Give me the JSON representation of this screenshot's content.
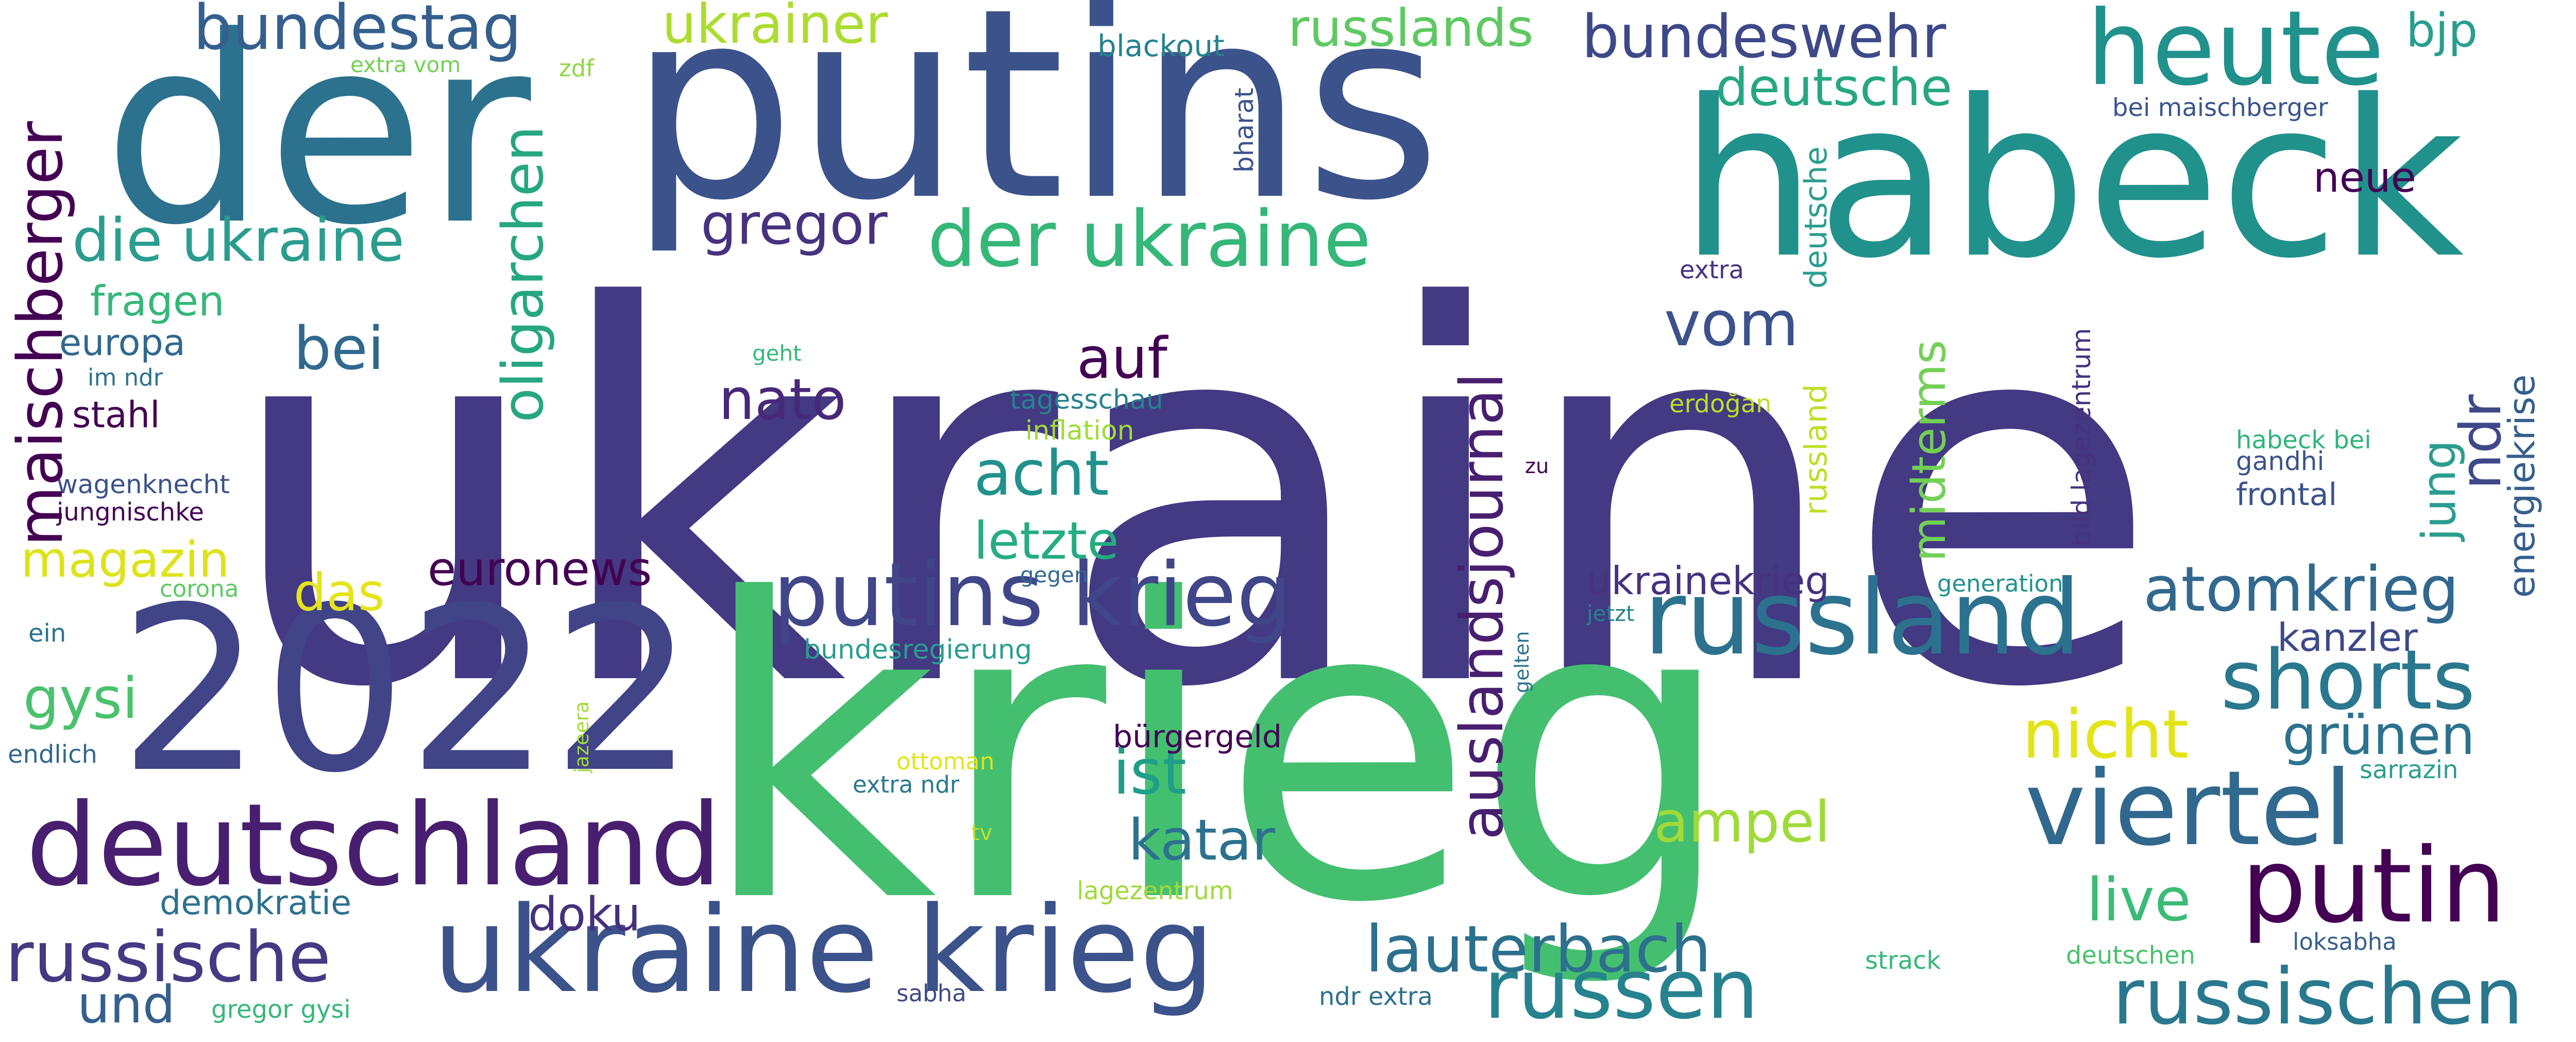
{
  "words": [
    {
      "text": "ukraine",
      "color": "#443983",
      "rot": 0
    },
    {
      "text": "krieg",
      "color": "#44bf70",
      "rot": 0
    },
    {
      "text": "putins",
      "color": "#3b528b",
      "rot": 0
    },
    {
      "text": "der",
      "color": "#2c728e",
      "rot": 0
    },
    {
      "text": "habeck",
      "color": "#21918c",
      "rot": 0
    },
    {
      "text": "2022",
      "color": "#414487",
      "rot": 0
    },
    {
      "text": "deutschland",
      "color": "#481f70",
      "rot": 0
    },
    {
      "text": "ukraine krieg",
      "color": "#3b528b",
      "rot": 0
    },
    {
      "text": "heute",
      "color": "#21918c",
      "rot": 0
    },
    {
      "text": "russland",
      "color": "#2c728e",
      "rot": 0
    },
    {
      "text": "putin",
      "color": "#440154",
      "rot": 0
    },
    {
      "text": "viertel",
      "color": "#31688e",
      "rot": 0
    },
    {
      "text": "putins krieg",
      "color": "#404688",
      "rot": 0
    },
    {
      "text": "der ukraine",
      "color": "#35b779",
      "rot": 0
    },
    {
      "text": "shorts",
      "color": "#2a788e",
      "rot": 0
    },
    {
      "text": "russen",
      "color": "#26828e",
      "rot": 0
    },
    {
      "text": "russischen",
      "color": "#2a788e",
      "rot": 0
    },
    {
      "text": "bundeswehr",
      "color": "#3e4989",
      "rot": 0
    },
    {
      "text": "bundestag",
      "color": "#355f8d",
      "rot": 0
    },
    {
      "text": "russische",
      "color": "#443a83",
      "rot": 0
    },
    {
      "text": "atomkrieg",
      "color": "#31688e",
      "rot": 0
    },
    {
      "text": "lauterbach",
      "color": "#2d708e",
      "rot": 0
    },
    {
      "text": "die ukraine",
      "color": "#2a9d8f",
      "rot": 0
    },
    {
      "text": "acht",
      "color": "#21918c",
      "rot": 0
    },
    {
      "text": "nicht",
      "color": "#e3e418",
      "rot": 0
    },
    {
      "text": "ukrainer",
      "color": "#addc30",
      "rot": 0
    },
    {
      "text": "russlands",
      "color": "#5ec962",
      "rot": 0
    },
    {
      "text": "deutsche",
      "color": "#26a782",
      "rot": 0
    },
    {
      "text": "gregor",
      "color": "#46327e",
      "rot": 0
    },
    {
      "text": "vom",
      "color": "#3b528b",
      "rot": 0
    },
    {
      "text": "nato",
      "color": "#482878",
      "rot": 0
    },
    {
      "text": "auf",
      "color": "#440154",
      "rot": 0
    },
    {
      "text": "ist",
      "color": "#1f9e89",
      "rot": 0
    },
    {
      "text": "katar",
      "color": "#2c728e",
      "rot": 0
    },
    {
      "text": "ampel",
      "color": "#a0da39",
      "rot": 0
    },
    {
      "text": "grünen",
      "color": "#2c728e",
      "rot": 0
    },
    {
      "text": "live",
      "color": "#3bbb75",
      "rot": 0
    },
    {
      "text": "letzte",
      "color": "#25ac82",
      "rot": 0
    },
    {
      "text": "bei",
      "color": "#31688e",
      "rot": 0
    },
    {
      "text": "magazin",
      "color": "#dde318",
      "rot": 0
    },
    {
      "text": "das",
      "color": "#e5e419",
      "rot": 0
    },
    {
      "text": "euronews",
      "color": "#440154",
      "rot": 0
    },
    {
      "text": "doku",
      "color": "#46307e",
      "rot": 0
    },
    {
      "text": "und",
      "color": "#355f8d",
      "rot": 0
    },
    {
      "text": "gysi",
      "color": "#4ac16d",
      "rot": 0
    },
    {
      "text": "bjp",
      "color": "#2a9d8f",
      "rot": 0
    },
    {
      "text": "neue",
      "color": "#440154",
      "rot": 0
    },
    {
      "text": "kanzler",
      "color": "#3e4989",
      "rot": 0
    },
    {
      "text": "ukrainekrieg",
      "color": "#46327e",
      "rot": 0
    },
    {
      "text": "fragen",
      "color": "#35b779",
      "rot": 0
    },
    {
      "text": "europa",
      "color": "#31688e",
      "rot": 0
    },
    {
      "text": "stahl",
      "color": "#440154",
      "rot": 0
    },
    {
      "text": "demokratie",
      "color": "#2c728e",
      "rot": 0
    },
    {
      "text": "bürgergeld",
      "color": "#440154",
      "rot": 0
    },
    {
      "text": "frontal",
      "color": "#3b528b",
      "rot": 0
    },
    {
      "text": "gandhi",
      "color": "#3b528b",
      "rot": 0
    },
    {
      "text": "habeck bei",
      "color": "#2fb47c",
      "rot": 0
    },
    {
      "text": "bei maischberger",
      "color": "#39558c",
      "rot": 0
    },
    {
      "text": "blackout",
      "color": "#26828e",
      "rot": 0
    },
    {
      "text": "extra vom",
      "color": "#73d056",
      "rot": 0
    },
    {
      "text": "zdf",
      "color": "#8fd744",
      "rot": 0
    },
    {
      "text": "im ndr",
      "color": "#2c728e",
      "rot": 0
    },
    {
      "text": "wagenknecht",
      "color": "#3b528b",
      "rot": 0
    },
    {
      "text": "jungnischke",
      "color": "#440154",
      "rot": 0
    },
    {
      "text": "corona",
      "color": "#5ec962",
      "rot": 0
    },
    {
      "text": "ein",
      "color": "#2c728e",
      "rot": 0
    },
    {
      "text": "endlich",
      "color": "#31688e",
      "rot": 0
    },
    {
      "text": "gregor gysi",
      "color": "#35b779",
      "rot": 0
    },
    {
      "text": "sabha",
      "color": "#3e4989",
      "rot": 0
    },
    {
      "text": "ndr extra",
      "color": "#2c728e",
      "rot": 0
    },
    {
      "text": "strack",
      "color": "#35b779",
      "rot": 0
    },
    {
      "text": "deutschen",
      "color": "#4ac16d",
      "rot": 0
    },
    {
      "text": "loksabha",
      "color": "#355f8d",
      "rot": 0
    },
    {
      "text": "sarrazin",
      "color": "#2a9d8f",
      "rot": 0
    },
    {
      "text": "generation",
      "color": "#21918c",
      "rot": 0
    },
    {
      "text": "jetzt",
      "color": "#26828e",
      "rot": 0
    },
    {
      "text": "zu",
      "color": "#440154",
      "rot": 0
    },
    {
      "text": "erdoğan",
      "color": "#bddf26",
      "rot": 0
    },
    {
      "text": "extra",
      "color": "#46327e",
      "rot": 0
    },
    {
      "text": "geht",
      "color": "#35b779",
      "rot": 0
    },
    {
      "text": "tagesschau",
      "color": "#26828e",
      "rot": 0
    },
    {
      "text": "inflation",
      "color": "#a0da39",
      "rot": 0
    },
    {
      "text": "gegen",
      "color": "#31688e",
      "rot": 0
    },
    {
      "text": "bundesregierung",
      "color": "#2a9d8f",
      "rot": 0
    },
    {
      "text": "ottoman",
      "color": "#e3e418",
      "rot": 0
    },
    {
      "text": "extra ndr",
      "color": "#2a788e",
      "rot": 0
    },
    {
      "text": "lagezentrum",
      "color": "#a0da39",
      "rot": 0
    },
    {
      "text": "tv",
      "color": "#bddf26",
      "rot": 0
    },
    {
      "text": "maischberger",
      "color": "#440154",
      "rot": -90
    },
    {
      "text": "oligarchen",
      "color": "#26a782",
      "rot": -90
    },
    {
      "text": "auslandsjournal",
      "color": "#481f70",
      "rot": -90
    },
    {
      "text": "russland",
      "color": "#bddf26",
      "rot": -90
    },
    {
      "text": "deutsche",
      "color": "#2a9d8f",
      "rot": -90
    },
    {
      "text": "midterms",
      "color": "#73d056",
      "rot": -90
    },
    {
      "text": "bharat",
      "color": "#3b528b",
      "rot": -90
    },
    {
      "text": "ndr",
      "color": "#3e4989",
      "rot": -90
    },
    {
      "text": "jung",
      "color": "#2a9d8f",
      "rot": -90
    },
    {
      "text": "energiekrise",
      "color": "#355f8d",
      "rot": -90
    },
    {
      "text": "bild lagezentrum",
      "color": "#46327e",
      "rot": -90
    },
    {
      "text": "gelten",
      "color": "#2c728e",
      "rot": -90
    },
    {
      "text": "jazeera",
      "color": "#a0da39",
      "rot": -90
    }
  ]
}
